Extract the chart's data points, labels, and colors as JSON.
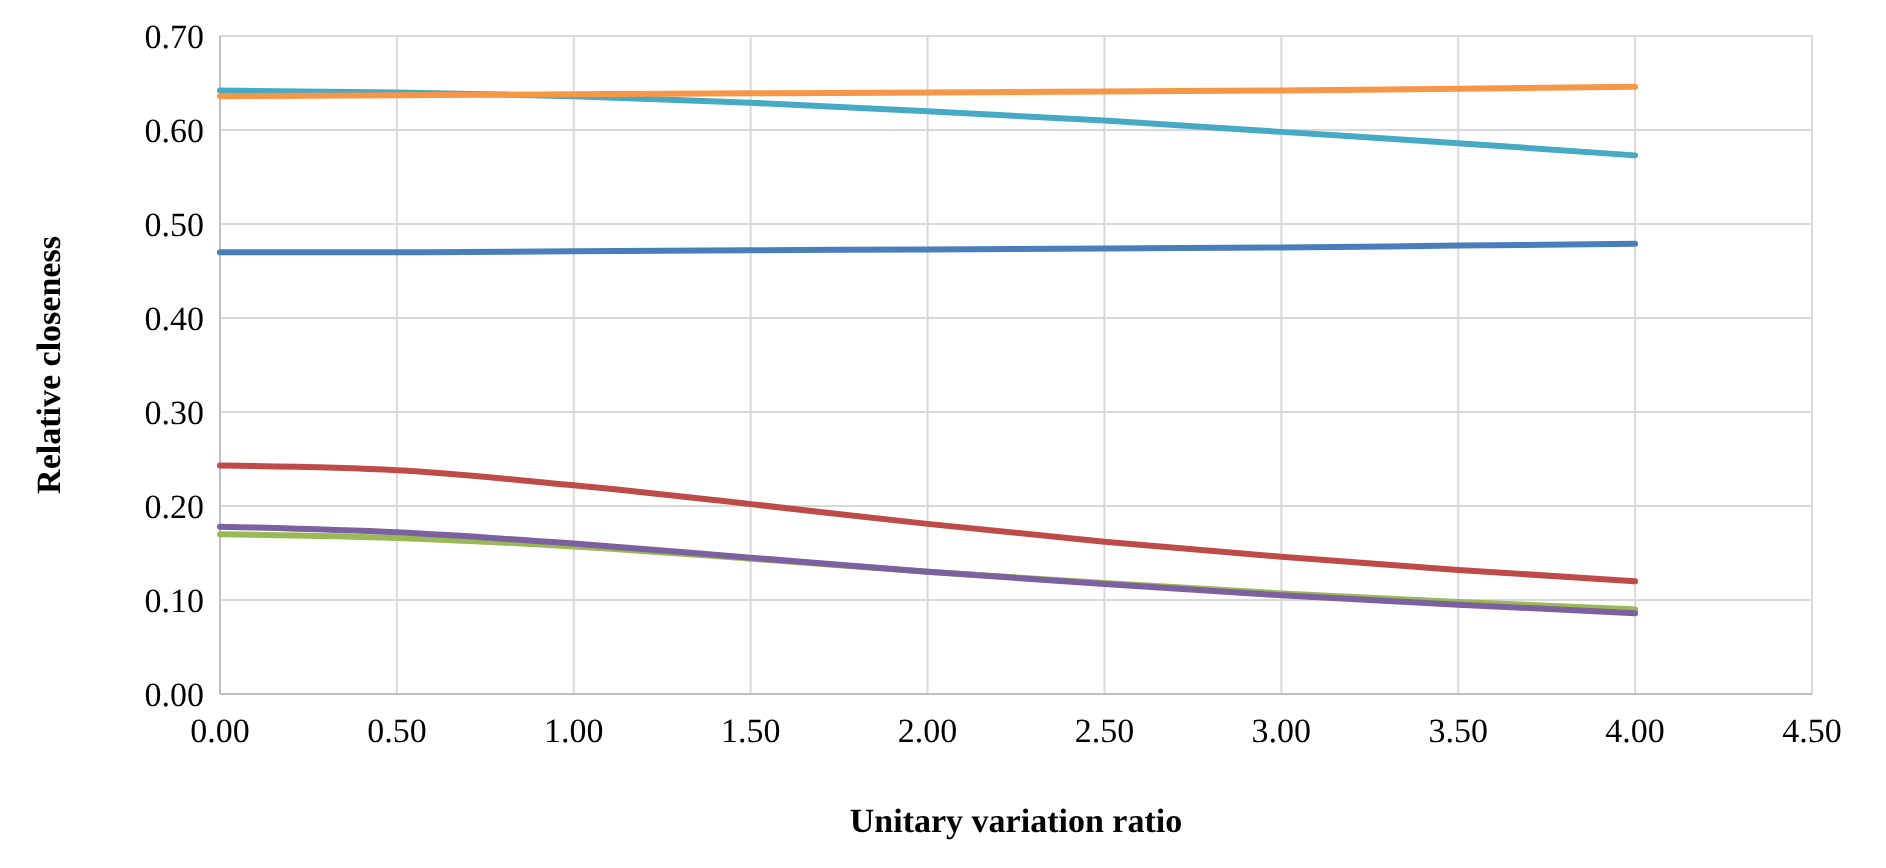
{
  "chart_data": {
    "type": "line",
    "xlabel": "Unitary variation ratio",
    "ylabel": "Relative closeness",
    "x": [
      0,
      0.5,
      1,
      1.5,
      2,
      2.5,
      3,
      3.5,
      4
    ],
    "series": [
      {
        "color": "#4a7ebb",
        "values": [
          0.47,
          0.47,
          0.471,
          0.472,
          0.473,
          0.474,
          0.475,
          0.477,
          0.479
        ]
      },
      {
        "color": "#be4b48",
        "values": [
          0.243,
          0.238,
          0.222,
          0.202,
          0.181,
          0.162,
          0.146,
          0.132,
          0.12
        ]
      },
      {
        "color": "#98b954",
        "values": [
          0.17,
          0.166,
          0.157,
          0.144,
          0.13,
          0.118,
          0.107,
          0.098,
          0.09
        ]
      },
      {
        "color": "#7d60a0",
        "values": [
          0.178,
          0.172,
          0.16,
          0.145,
          0.13,
          0.117,
          0.105,
          0.095,
          0.086
        ]
      },
      {
        "color": "#46aac5",
        "values": [
          0.642,
          0.64,
          0.636,
          0.629,
          0.62,
          0.61,
          0.598,
          0.586,
          0.573
        ]
      },
      {
        "color": "#f79646",
        "values": [
          0.636,
          0.637,
          0.638,
          0.639,
          0.64,
          0.641,
          0.642,
          0.644,
          0.646
        ]
      }
    ],
    "xlim": [
      0,
      4.5
    ],
    "xticks": [
      {
        "value": 0,
        "label": "0.00"
      },
      {
        "value": 0.5,
        "label": "0.50"
      },
      {
        "value": 1,
        "label": "1.00"
      },
      {
        "value": 1.5,
        "label": "1.50"
      },
      {
        "value": 2,
        "label": "2.00"
      },
      {
        "value": 2.5,
        "label": "2.50"
      },
      {
        "value": 3,
        "label": "3.00"
      },
      {
        "value": 3.5,
        "label": "3.50"
      },
      {
        "value": 4,
        "label": "4.00"
      },
      {
        "value": 4.5,
        "label": "4.50"
      }
    ],
    "ylim": [
      0,
      0.7
    ],
    "yticks": [
      {
        "value": 0,
        "label": "0.00"
      },
      {
        "value": 0.1,
        "label": "0.10"
      },
      {
        "value": 0.2,
        "label": "0.20"
      },
      {
        "value": 0.3,
        "label": "0.30"
      },
      {
        "value": 0.4,
        "label": "0.40"
      },
      {
        "value": 0.5,
        "label": "0.50"
      },
      {
        "value": 0.6,
        "label": "0.60"
      },
      {
        "value": 0.7,
        "label": "0.70"
      }
    ],
    "grid": true,
    "marker": "none",
    "line_style": "solid"
  }
}
